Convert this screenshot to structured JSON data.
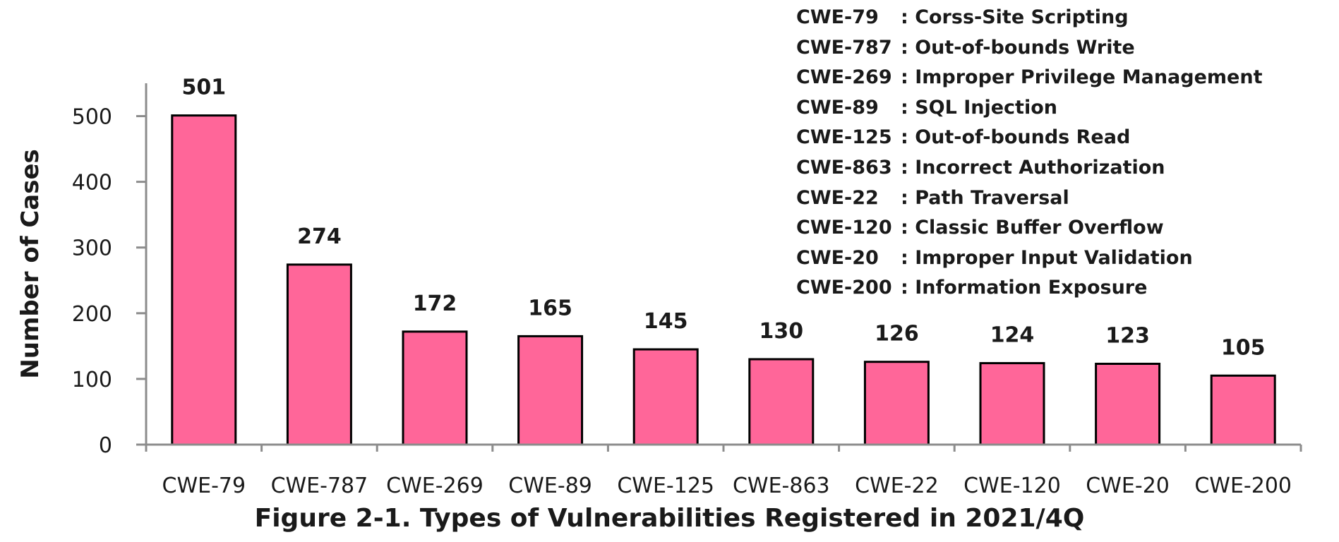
{
  "chart_data": {
    "type": "bar",
    "title": "Figure 2-1. Types of Vulnerabilities Registered in 2021/4Q",
    "xlabel": "",
    "ylabel": "Number of Cases",
    "ylim": [
      0,
      550
    ],
    "yticks": [
      0,
      100,
      200,
      300,
      400,
      500
    ],
    "grid": false,
    "bar_color": "#ff6699",
    "categories": [
      "CWE-79",
      "CWE-787",
      "CWE-269",
      "CWE-89",
      "CWE-125",
      "CWE-863",
      "CWE-22",
      "CWE-120",
      "CWE-20",
      "CWE-200"
    ],
    "values": [
      501,
      274,
      172,
      165,
      145,
      130,
      126,
      124,
      123,
      105
    ],
    "legend_placement": "top-right",
    "legend": [
      {
        "code": "CWE-79",
        "desc": ": Corss-Site Scripting"
      },
      {
        "code": "CWE-787",
        "desc": ": Out-of-bounds Write"
      },
      {
        "code": "CWE-269",
        "desc": ": Improper Privilege Management"
      },
      {
        "code": "CWE-89",
        "desc": ": SQL Injection"
      },
      {
        "code": "CWE-125",
        "desc": ": Out-of-bounds Read"
      },
      {
        "code": "CWE-863",
        "desc": ": Incorrect Authorization"
      },
      {
        "code": "CWE-22",
        "desc": ": Path Traversal"
      },
      {
        "code": "CWE-120",
        "desc": ": Classic Buffer Overflow"
      },
      {
        "code": "CWE-20",
        "desc": ": Improper Input Validation"
      },
      {
        "code": "CWE-200",
        "desc": ": Information Exposure"
      }
    ]
  }
}
